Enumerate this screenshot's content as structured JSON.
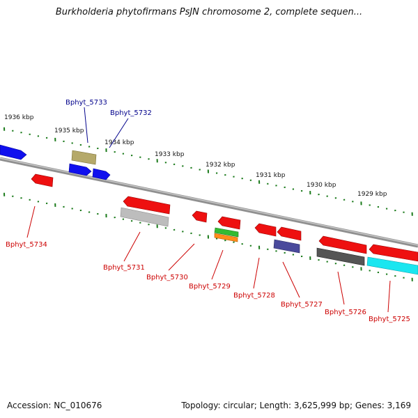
{
  "title": "Burkholderia phytofirmans PsJN chromosome 2, complete sequen...",
  "footer": {
    "accession": "Accession: NC_010676",
    "summary": "Topology: circular; Length: 3,625,999 bp; Genes: 3,169"
  },
  "colors": {
    "background": "#ffffff",
    "backbone": "#808080",
    "tick": "#1a7a1a",
    "forward_label": "#00008b",
    "reverse_label": "#cc0000"
  },
  "kbp_labels": [
    "1936 kbp",
    "1935 kbp",
    "1934 kbp",
    "1933 kbp",
    "1932 kbp",
    "1931 kbp",
    "1930 kbp",
    "1929 kbp"
  ],
  "genes": [
    {
      "label": "Bphyt_5733",
      "strand": "forward"
    },
    {
      "label": "Bphyt_5732",
      "strand": "forward"
    },
    {
      "label": "Bphyt_5734",
      "strand": "reverse"
    },
    {
      "label": "Bphyt_5731",
      "strand": "reverse"
    },
    {
      "label": "Bphyt_5730",
      "strand": "reverse"
    },
    {
      "label": "Bphyt_5729",
      "strand": "reverse"
    },
    {
      "label": "Bphyt_5728",
      "strand": "reverse"
    },
    {
      "label": "Bphyt_5727",
      "strand": "reverse"
    },
    {
      "label": "Bphyt_5726",
      "strand": "reverse"
    },
    {
      "label": "Bphyt_5725",
      "strand": "reverse"
    }
  ]
}
